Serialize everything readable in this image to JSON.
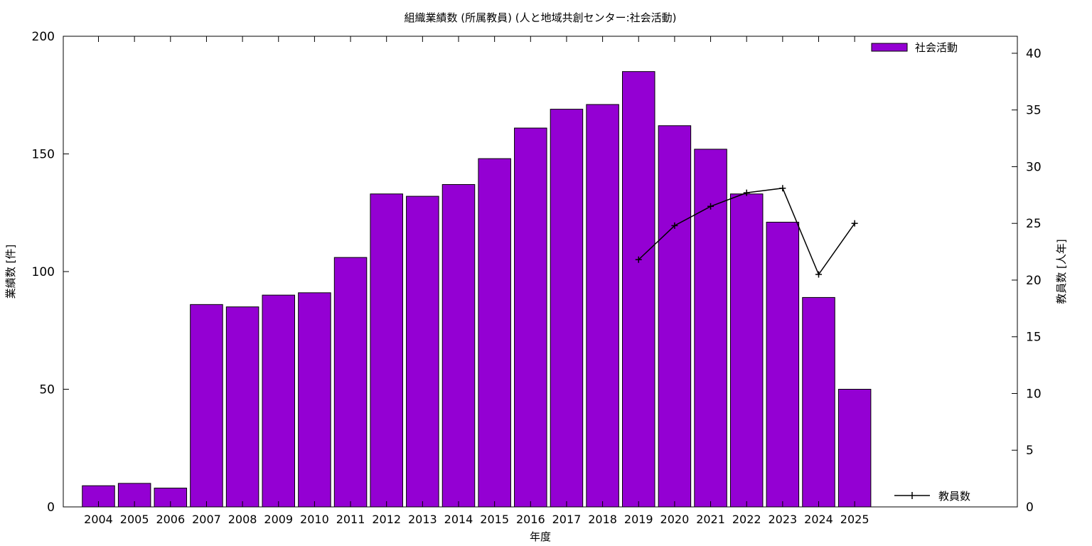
{
  "chart_data": {
    "type": "bar",
    "title": "組織業績数 (所属教員) (人と地域共創センター:社会活動)",
    "xlabel": "年度",
    "ylabel": "業績数 [件]",
    "y2label": "教員数 [人年]",
    "categories": [
      "2004",
      "2005",
      "2006",
      "2007",
      "2008",
      "2009",
      "2010",
      "2011",
      "2012",
      "2013",
      "2014",
      "2015",
      "2016",
      "2017",
      "2018",
      "2019",
      "2020",
      "2021",
      "2022",
      "2023",
      "2024",
      "2025"
    ],
    "series": [
      {
        "name": "社会活動",
        "type": "bar",
        "axis": "left",
        "color": "#9400d3",
        "values": [
          9,
          10,
          8,
          86,
          85,
          90,
          91,
          106,
          133,
          132,
          137,
          148,
          161,
          169,
          171,
          185,
          162,
          152,
          133,
          121,
          89,
          50
        ]
      },
      {
        "name": "教員数",
        "type": "line",
        "axis": "right",
        "color": "#000000",
        "marker": "plus",
        "values": [
          null,
          null,
          null,
          null,
          null,
          null,
          null,
          null,
          null,
          null,
          null,
          null,
          null,
          null,
          null,
          21.8,
          24.8,
          26.5,
          27.7,
          28.1,
          20.5,
          25.0
        ]
      }
    ],
    "ylim": [
      0,
      200
    ],
    "y_ticks": [
      0,
      50,
      100,
      150,
      200
    ],
    "y2lim": [
      0,
      41.5
    ],
    "y2_ticks": [
      0,
      5,
      10,
      15,
      20,
      25,
      30,
      35,
      40
    ],
    "legend_positions": {
      "bars": "top-right",
      "line": "bottom-right"
    },
    "grid": false
  }
}
